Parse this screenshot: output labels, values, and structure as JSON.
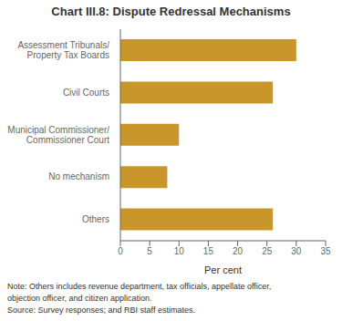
{
  "chart_data": {
    "type": "bar",
    "orientation": "horizontal",
    "title": "Chart III.8: Dispute Redressal Mechanisms",
    "categories": [
      "Others",
      "No mechanism",
      "Municipal Commissioner/\nCommissioner Court",
      "Civil Courts",
      "Assessment Tribunals/\nProperty Tax Boards"
    ],
    "values": [
      26,
      8,
      10,
      26,
      30
    ],
    "color": "#C8962A",
    "xlabel": "Per cent",
    "xlim": [
      0,
      35
    ],
    "xticks": [
      0,
      5,
      10,
      15,
      20,
      25,
      30,
      35
    ],
    "grid": false,
    "annotations": [
      "Note: Others includes revenue department, tax officials, appellate officer,",
      "objection officer, and citizen application.",
      "Source: Survey responses; and RBI staff estimates."
    ]
  }
}
